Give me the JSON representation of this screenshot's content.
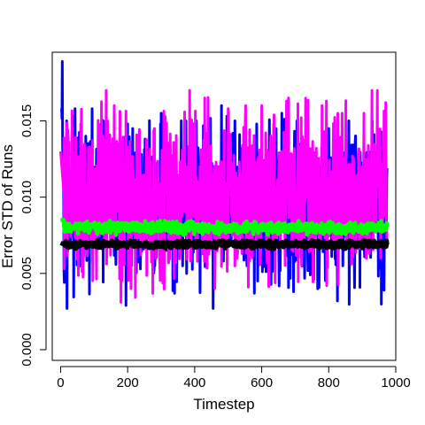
{
  "chart_data": {
    "type": "line",
    "xlabel": "Timestep",
    "ylabel": "Error STD of Runs",
    "xlim": [
      -25,
      1000
    ],
    "ylim": [
      -0.0007,
      0.0195
    ],
    "x_ticks": [
      0,
      200,
      400,
      600,
      800,
      1000
    ],
    "x_tick_labels": [
      "0",
      "200",
      "400",
      "600",
      "800",
      "1000"
    ],
    "y_ticks": [
      0.0,
      0.005,
      0.01,
      0.015
    ],
    "y_tick_labels": [
      "0.000",
      "0.005",
      "0.010",
      "0.015"
    ],
    "grid": false,
    "legend": "none",
    "n_points": 975,
    "series": [
      {
        "color": "#0000ff",
        "description": "noisy, widest spread",
        "start_value": 0.0189,
        "settle_value": 0.0095,
        "band_low": 0.0027,
        "band_high": 0.0158,
        "peaks": [
          [
            5,
            0.0189
          ],
          [
            18,
            0.015
          ],
          [
            75,
            0.014
          ],
          [
            120,
            0.0145
          ],
          [
            200,
            0.0148
          ],
          [
            215,
            0.0145
          ],
          [
            300,
            0.0155
          ],
          [
            360,
            0.015
          ],
          [
            405,
            0.015
          ],
          [
            480,
            0.016
          ],
          [
            520,
            0.015
          ],
          [
            585,
            0.0148
          ],
          [
            660,
            0.0155
          ],
          [
            705,
            0.015
          ],
          [
            800,
            0.0145
          ],
          [
            860,
            0.015
          ],
          [
            930,
            0.015
          ]
        ],
        "troughs": [
          [
            195,
            0.0029
          ],
          [
            455,
            0.0027
          ],
          [
            340,
            0.0037
          ],
          [
            695,
            0.0038
          ],
          [
            965,
            0.0039
          ]
        ]
      },
      {
        "color": "#ff00ff",
        "description": "noisy, high mean",
        "start_value": 0.013,
        "settle_value": 0.0102,
        "band_low": 0.003,
        "band_high": 0.017,
        "peaks": [
          [
            60,
            0.0148
          ],
          [
            140,
            0.015
          ],
          [
            160,
            0.016
          ],
          [
            280,
            0.0145
          ],
          [
            385,
            0.017
          ],
          [
            430,
            0.0165
          ],
          [
            500,
            0.0158
          ],
          [
            600,
            0.016
          ],
          [
            680,
            0.0165
          ],
          [
            780,
            0.016
          ],
          [
            840,
            0.0155
          ],
          [
            905,
            0.0155
          ],
          [
            945,
            0.017
          ],
          [
            970,
            0.0162
          ]
        ],
        "troughs": [
          [
            180,
            0.0031
          ],
          [
            210,
            0.004
          ],
          [
            460,
            0.004
          ],
          [
            560,
            0.0041
          ]
        ]
      },
      {
        "color": "#00ff00",
        "description": "low noise",
        "start_value": 0.013,
        "settle_value": 0.008,
        "band_low": 0.0075,
        "band_high": 0.0085
      },
      {
        "color": "#000000",
        "description": "lowest noise",
        "start_value": 0.007,
        "settle_value": 0.0069,
        "band_low": 0.0066,
        "band_high": 0.0072
      }
    ]
  }
}
